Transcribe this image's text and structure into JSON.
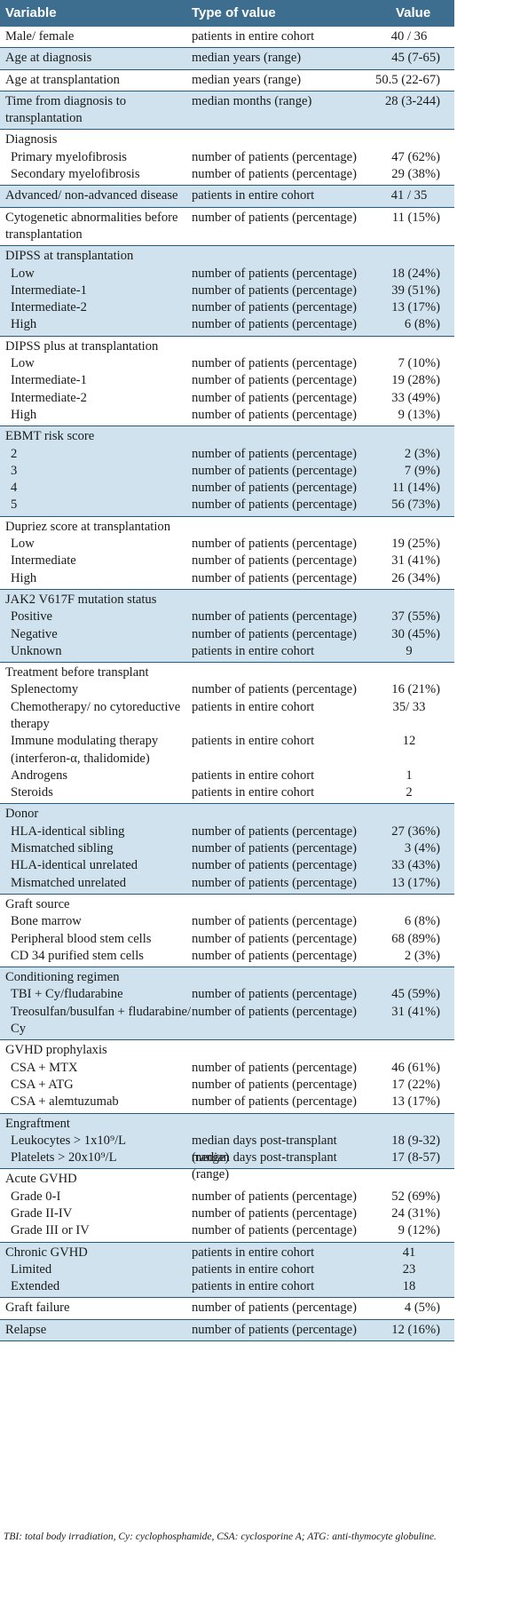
{
  "header": {
    "variable": "Variable",
    "type": "Type of value",
    "value": "Value"
  },
  "groups": [
    {
      "shade": false,
      "rows": [
        {
          "v": "Male/ female",
          "t": "patients in entire cohort",
          "x": "40 / 36",
          "center": true
        }
      ]
    },
    {
      "shade": true,
      "rows": [
        {
          "v": "Age at diagnosis",
          "t": "median years (range)",
          "x": "45 (7-65)"
        }
      ]
    },
    {
      "shade": false,
      "rows": [
        {
          "v": "Age  at transplantation",
          "t": "median years (range)",
          "x": "50.5 (22-67)"
        }
      ]
    },
    {
      "shade": true,
      "rows": [
        {
          "v": "Time from diagnosis to transplantation",
          "t": "median months (range)",
          "x": "28 (3-244)",
          "tall": true
        }
      ]
    },
    {
      "shade": false,
      "rows": [
        {
          "v": "Diagnosis",
          "t": "",
          "x": ""
        },
        {
          "v": "Primary myelofibrosis",
          "t": "number of patients (percentage)",
          "x": "47 (62%)",
          "sub": true
        },
        {
          "v": "Secondary myelofibrosis",
          "t": "number of patients (percentage)",
          "x": "29 (38%)",
          "sub": true
        }
      ]
    },
    {
      "shade": true,
      "rows": [
        {
          "v": "Advanced/ non-advanced disease",
          "t": "patients in entire cohort",
          "x": "41 / 35",
          "center": true
        }
      ]
    },
    {
      "shade": false,
      "rows": [
        {
          "v": "Cytogenetic abnormalities before transplantation",
          "t": "number of patients (percentage)",
          "x": "11 (15%)",
          "tall": true
        }
      ]
    },
    {
      "shade": true,
      "rows": [
        {
          "v": "DIPSS at transplantation",
          "t": "",
          "x": ""
        },
        {
          "v": "Low",
          "t": "number of patients (percentage)",
          "x": "18 (24%)",
          "sub": true
        },
        {
          "v": "Intermediate-1",
          "t": "number of patients (percentage)",
          "x": "39 (51%)",
          "sub": true
        },
        {
          "v": "Intermediate-2",
          "t": "number of patients (percentage)",
          "x": "13 (17%)",
          "sub": true
        },
        {
          "v": "High",
          "t": "number of patients (percentage)",
          "x": "6 (8%)",
          "sub": true
        }
      ]
    },
    {
      "shade": false,
      "rows": [
        {
          "v": "DIPSS plus at transplantation",
          "t": "",
          "x": ""
        },
        {
          "v": "Low",
          "t": "number of patients (percentage)",
          "x": "7 (10%)",
          "sub": true
        },
        {
          "v": "Intermediate-1",
          "t": "number of patients (percentage)",
          "x": "19 (28%)",
          "sub": true
        },
        {
          "v": "Intermediate-2",
          "t": "number of patients (percentage)",
          "x": "33 (49%)",
          "sub": true
        },
        {
          "v": "High",
          "t": "number of patients (percentage)",
          "x": "9 (13%)",
          "sub": true
        }
      ]
    },
    {
      "shade": true,
      "rows": [
        {
          "v": "EBMT risk score",
          "t": "",
          "x": ""
        },
        {
          "v": "2",
          "t": "number of patients (percentage)",
          "x": "2 (3%)",
          "sub": true
        },
        {
          "v": "3",
          "t": "number of patients (percentage)",
          "x": "7 (9%)",
          "sub": true
        },
        {
          "v": "4",
          "t": "number of patients (percentage)",
          "x": "11 (14%)",
          "sub": true
        },
        {
          "v": "5",
          "t": "number of patients (percentage)",
          "x": "56 (73%)",
          "sub": true
        }
      ]
    },
    {
      "shade": false,
      "rows": [
        {
          "v": "Dupriez score at transplantation",
          "t": "",
          "x": ""
        },
        {
          "v": "Low",
          "t": "number of patients (percentage)",
          "x": "19 (25%)",
          "sub": true
        },
        {
          "v": "Intermediate",
          "t": "number of patients (percentage)",
          "x": "31 (41%)",
          "sub": true
        },
        {
          "v": "High",
          "t": "number of patients (percentage)",
          "x": "26 (34%)",
          "sub": true
        }
      ]
    },
    {
      "shade": true,
      "rows": [
        {
          "v": "JAK2 V617F mutation status",
          "t": "",
          "x": ""
        },
        {
          "v": "Positive",
          "t": "number of patients (percentage)",
          "x": "37 (55%)",
          "sub": true
        },
        {
          "v": "Negative",
          "t": "number of patients (percentage)",
          "x": "30 (45%)",
          "sub": true
        },
        {
          "v": "Unknown",
          "t": "patients in entire cohort",
          "x": "9",
          "sub": true,
          "center": true
        }
      ]
    },
    {
      "shade": false,
      "rows": [
        {
          "v": "Treatment before transplant",
          "t": "",
          "x": ""
        },
        {
          "v": "Splenectomy",
          "t": "number of patients (percentage)",
          "x": "16 (21%)",
          "sub": true
        },
        {
          "v": "Chemotherapy/ no cytoreductive therapy",
          "t": "patients in entire cohort",
          "x": "35/ 33",
          "sub": true,
          "tall": true,
          "center": true
        },
        {
          "v": "Immune modulating therapy (interferon-α, thalidomide)",
          "t": "patients in entire cohort",
          "x": "12",
          "sub": true,
          "tall": true,
          "center": true
        },
        {
          "v": "Androgens",
          "t": "patients in entire cohort",
          "x": "1",
          "sub": true,
          "center": true
        },
        {
          "v": "Steroids",
          "t": "patients in entire cohort",
          "x": "2",
          "sub": true,
          "center": true
        }
      ]
    },
    {
      "shade": true,
      "rows": [
        {
          "v": "Donor",
          "t": "",
          "x": ""
        },
        {
          "v": "HLA-identical sibling",
          "t": "number of patients (percentage)",
          "x": "27 (36%)",
          "sub": true
        },
        {
          "v": "Mismatched sibling",
          "t": "number of patients (percentage)",
          "x": "3 (4%)",
          "sub": true
        },
        {
          "v": "HLA-identical unrelated",
          "t": "number of patients (percentage)",
          "x": "33 (43%)",
          "sub": true
        },
        {
          "v": "Mismatched unrelated",
          "t": "number of patients (percentage)",
          "x": "13 (17%)",
          "sub": true
        }
      ]
    },
    {
      "shade": false,
      "rows": [
        {
          "v": "Graft source",
          "t": "",
          "x": ""
        },
        {
          "v": "Bone marrow",
          "t": "number of patients (percentage)",
          "x": "6 (8%)",
          "sub": true
        },
        {
          "v": "Peripheral blood stem cells",
          "t": "number of patients (percentage)",
          "x": "68 (89%)",
          "sub": true
        },
        {
          "v": "CD 34 purified stem cells",
          "t": "number of patients (percentage)",
          "x": "2 (3%)",
          "sub": true
        }
      ]
    },
    {
      "shade": true,
      "rows": [
        {
          "v": "Conditioning regimen",
          "t": "",
          "x": ""
        },
        {
          "v": "TBI + Cy/fludarabine",
          "t": "number of patients (percentage)",
          "x": "45 (59%)",
          "sub": true
        },
        {
          "v": "Treosulfan/busulfan + fludarabine/ Cy",
          "t": "number of patients (percentage)",
          "x": "31 (41%)",
          "sub": true,
          "tall": true
        }
      ]
    },
    {
      "shade": false,
      "rows": [
        {
          "v": "GVHD prophylaxis",
          "t": "",
          "x": ""
        },
        {
          "v": "CSA + MTX",
          "t": "number of patients (percentage)",
          "x": "46 (61%)",
          "sub": true
        },
        {
          "v": "CSA + ATG",
          "t": "number of patients (percentage)",
          "x": "17 (22%)",
          "sub": true
        },
        {
          "v": "CSA + alemtuzumab",
          "t": "number of patients (percentage)",
          "x": "13 (17%)",
          "sub": true
        }
      ]
    },
    {
      "shade": true,
      "rows": [
        {
          "v": "Engraftment",
          "t": "",
          "x": ""
        },
        {
          "v": "Leukocytes  >  1x10⁹/L",
          "t": "median days post-transplant (range)",
          "x": "18 (9-32)",
          "sub": true
        },
        {
          "v": "Platelets > 20x10⁹/L",
          "t": "median days post-transplant (range)",
          "x": "17 (8-57)",
          "sub": true
        }
      ]
    },
    {
      "shade": false,
      "rows": [
        {
          "v": "Acute GVHD",
          "t": "",
          "x": ""
        },
        {
          "v": "Grade 0-I",
          "t": "number of patients (percentage)",
          "x": "52 (69%)",
          "sub": true
        },
        {
          "v": "Grade II-IV",
          "t": "number of patients (percentage)",
          "x": "24 (31%)",
          "sub": true
        },
        {
          "v": "Grade III or IV",
          "t": "number of patients (percentage)",
          "x": "9 (12%)",
          "sub": true
        }
      ]
    },
    {
      "shade": true,
      "rows": [
        {
          "v": "Chronic GVHD",
          "t": "patients in entire cohort",
          "x": "41",
          "center": true
        },
        {
          "v": "Limited",
          "t": "patients in entire cohort",
          "x": "23",
          "sub": true,
          "center": true
        },
        {
          "v": "Extended",
          "t": "patients in entire cohort",
          "x": "18",
          "sub": true,
          "center": true
        }
      ]
    },
    {
      "shade": false,
      "rows": [
        {
          "v": "Graft failure",
          "t": "number of patients (percentage)",
          "x": "4 (5%)"
        }
      ]
    },
    {
      "shade": true,
      "rows": [
        {
          "v": "Relapse",
          "t": "number of patients (percentage)",
          "x": "12 (16%)"
        }
      ]
    }
  ],
  "footnote": "TBI: total body irradiation, Cy: cyclophosphamide, CSA: cyclosporine A; ATG: anti-thymocyte globuline."
}
